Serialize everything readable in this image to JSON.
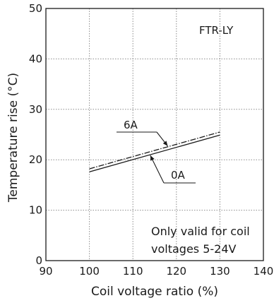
{
  "chart_data": {
    "type": "line",
    "title": "",
    "xlabel": "Coil voltage ratio (%)",
    "ylabel": "Temperature rise (°C)",
    "xlim": [
      90,
      140
    ],
    "ylim": [
      0,
      50
    ],
    "xticks": [
      90,
      100,
      110,
      120,
      130,
      140
    ],
    "yticks": [
      0,
      10,
      20,
      30,
      40,
      50
    ],
    "grid": true,
    "series": [
      {
        "name": "6A",
        "style": "dash-dot",
        "x": [
          100,
          130
        ],
        "y": [
          18.2,
          25.5
        ]
      },
      {
        "name": "0A",
        "style": "solid",
        "x": [
          100,
          130
        ],
        "y": [
          17.6,
          24.9
        ]
      }
    ],
    "annotations": {
      "model": "FTR-LY",
      "note_line1": "Only valid for coil",
      "note_line2": "voltages 5-24V"
    }
  }
}
